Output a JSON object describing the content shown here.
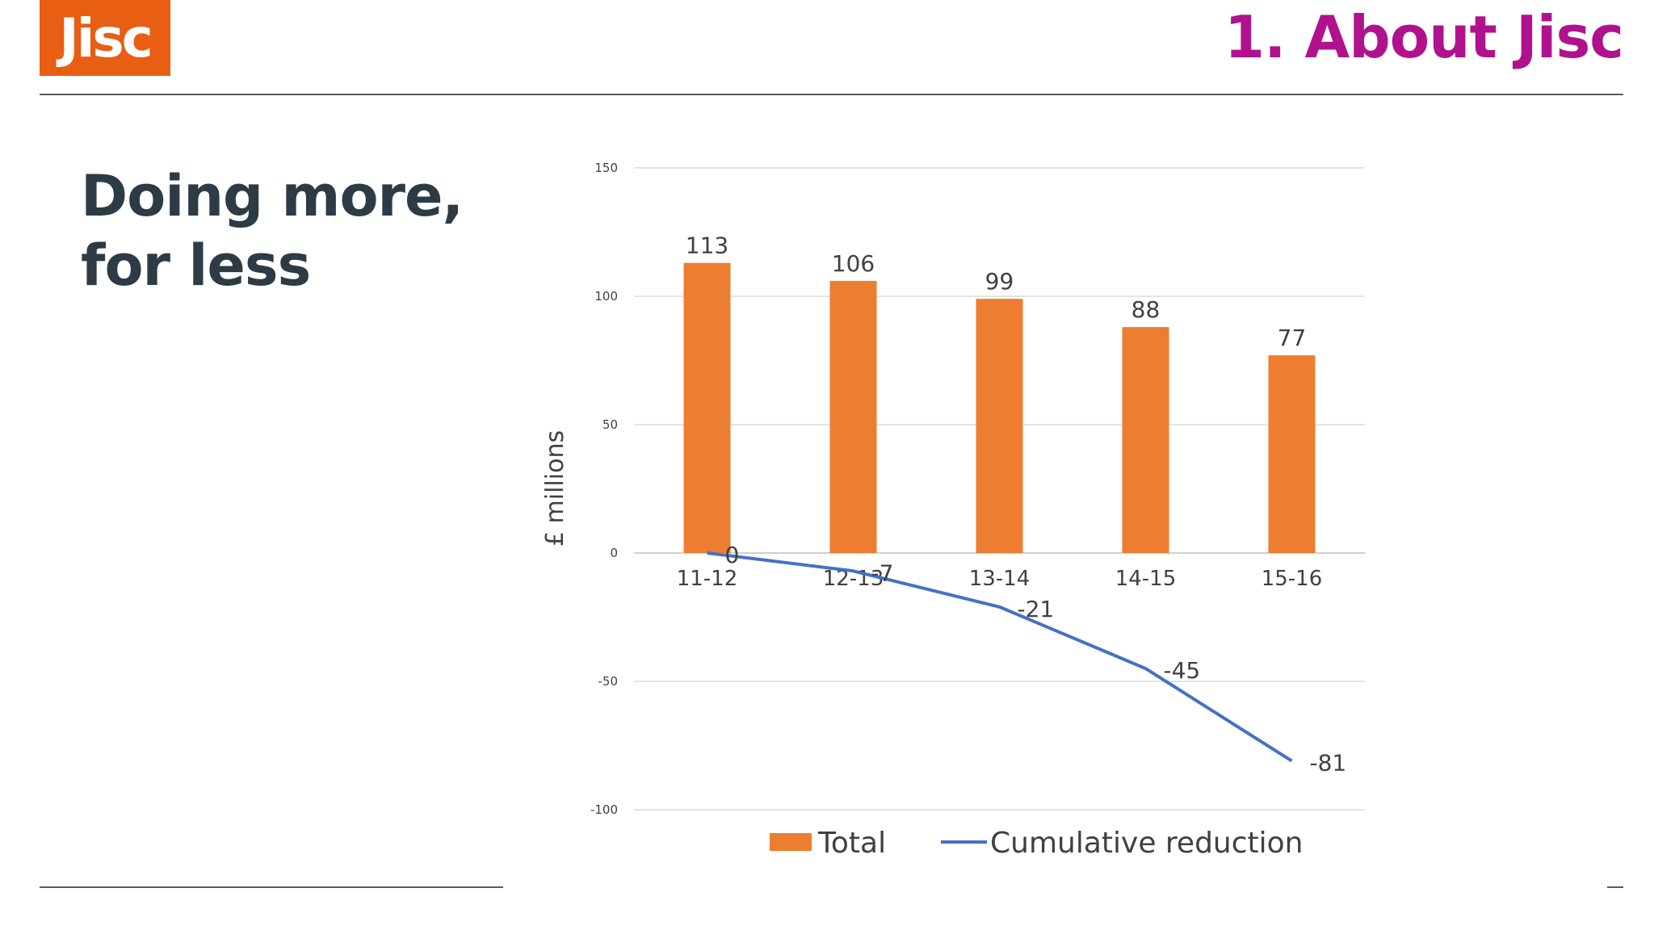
{
  "header": {
    "logo_text": "Jisc",
    "section_title": "1. About Jisc"
  },
  "slide": {
    "heading_line1": "Doing more,",
    "heading_line2": "for less"
  },
  "colors": {
    "brand_orange": "#e85e13",
    "title_magenta": "#b0128e",
    "bar_orange": "#ed7d31",
    "line_blue": "#4472c4"
  },
  "chart_data": {
    "type": "bar",
    "categories": [
      "11-12",
      "12-13",
      "13-14",
      "14-15",
      "15-16"
    ],
    "series": [
      {
        "name": "Total",
        "type": "bar",
        "values": [
          113,
          106,
          99,
          88,
          77
        ]
      },
      {
        "name": "Cumulative reduction",
        "type": "line",
        "values": [
          0,
          -7,
          -21,
          -45,
          -81
        ]
      }
    ],
    "ylabel": "£ millions",
    "yticks": [
      150,
      100,
      50,
      0,
      -50,
      -100
    ],
    "ylim": [
      -100,
      150
    ],
    "grid": true,
    "legend": "bottom"
  }
}
